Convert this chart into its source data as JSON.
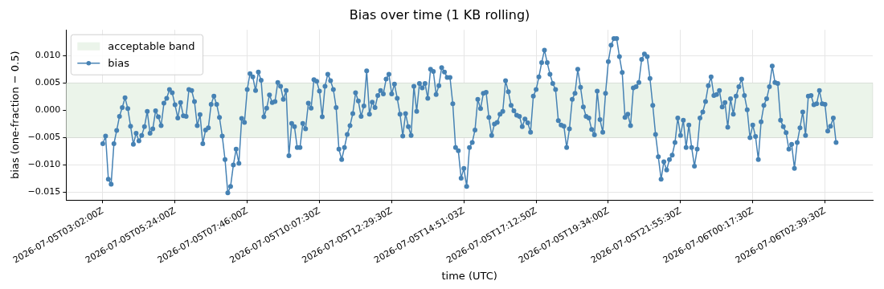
{
  "chart_data": {
    "type": "line",
    "title": "Bias over time (1 KB rolling)",
    "xlabel": "time (UTC)",
    "ylabel": "bias (one-fraction − 0.5)",
    "categories": [
      "2026-07-05T03:02:00Z",
      null,
      null,
      null,
      null,
      null,
      null,
      null,
      null,
      null,
      null,
      null,
      null,
      null,
      null,
      null,
      null,
      null,
      null,
      null,
      null,
      null,
      null,
      null,
      null,
      null,
      "2026-07-05T05:24:00Z",
      null,
      null,
      null,
      null,
      null,
      null,
      null,
      null,
      null,
      null,
      null,
      null,
      null,
      null,
      null,
      null,
      null,
      null,
      null,
      null,
      null,
      null,
      null,
      null,
      null,
      "2026-07-05T07:46:00Z",
      null,
      null,
      null,
      null,
      null,
      null,
      null,
      null,
      null,
      null,
      null,
      null,
      null,
      null,
      null,
      null,
      null,
      null,
      null,
      null,
      null,
      null,
      null,
      null,
      null,
      "2026-07-05T10:07:30Z",
      null,
      null,
      null,
      null,
      null,
      null,
      null,
      null,
      null,
      null,
      null,
      null,
      null,
      null,
      null,
      null,
      null,
      null,
      null,
      null,
      null,
      null,
      null,
      null,
      null,
      "2026-07-05T12:29:30Z",
      null,
      null,
      null,
      null,
      null,
      null,
      null,
      null,
      null,
      null,
      null,
      null,
      null,
      null,
      null,
      null,
      null,
      null,
      null,
      null,
      null,
      null,
      null,
      null,
      null,
      "2026-07-05T14:51:03Z",
      null,
      null,
      null,
      null,
      null,
      null,
      null,
      null,
      null,
      null,
      null,
      null,
      null,
      null,
      null,
      null,
      null,
      null,
      null,
      null,
      null,
      null,
      null,
      null,
      null,
      "2026-07-05T17:12:50Z",
      null,
      null,
      null,
      null,
      null,
      null,
      null,
      null,
      null,
      null,
      null,
      null,
      null,
      null,
      null,
      null,
      null,
      null,
      null,
      null,
      null,
      null,
      null,
      null,
      null,
      "2026-07-05T19:34:00Z",
      null,
      null,
      null,
      null,
      null,
      null,
      null,
      null,
      null,
      null,
      null,
      null,
      null,
      null,
      null,
      null,
      null,
      null,
      null,
      null,
      null,
      null,
      null,
      null,
      null,
      "2026-07-05T21:55:30Z",
      null,
      null,
      null,
      null,
      null,
      null,
      null,
      null,
      null,
      null,
      null,
      null,
      null,
      null,
      null,
      null,
      null,
      null,
      null,
      null,
      null,
      null,
      null,
      null,
      null,
      "2026-07-06T00:17:30Z",
      null,
      null,
      null,
      null,
      null,
      null,
      null,
      null,
      null,
      null,
      null,
      null,
      null,
      null,
      null,
      null,
      null,
      null,
      null,
      null,
      null,
      null,
      null,
      null,
      null,
      "2026-07-06T02:39:30Z",
      null,
      null,
      null,
      null
    ],
    "series": [
      {
        "name": "bias",
        "color": "#4682b4",
        "values": [
          -0.0061,
          -0.0047,
          -0.0126,
          -0.0135,
          -0.0061,
          -0.0037,
          -0.0011,
          0.0005,
          0.0023,
          0.0003,
          -0.0029,
          -0.0062,
          -0.0042,
          -0.0056,
          -0.0046,
          -0.003,
          -0.0002,
          -0.0042,
          -0.0034,
          -0.0001,
          -0.0012,
          -0.0028,
          0.0013,
          0.0022,
          0.0038,
          0.0032,
          0.001,
          -0.0014,
          0.0014,
          -0.001,
          -0.0011,
          0.0038,
          0.0036,
          0.0016,
          -0.0028,
          -0.0008,
          -0.0061,
          -0.0036,
          -0.0032,
          0.0011,
          0.0026,
          0.0011,
          -0.0013,
          -0.0047,
          -0.009,
          -0.0151,
          -0.0139,
          -0.01,
          -0.0071,
          -0.0097,
          -0.0015,
          -0.0022,
          0.0038,
          0.0067,
          0.0061,
          0.0036,
          0.007,
          0.0055,
          -0.0012,
          0.0004,
          0.0028,
          0.0014,
          0.0016,
          0.0051,
          0.0044,
          0.002,
          0.0036,
          -0.0083,
          -0.0024,
          -0.003,
          -0.0068,
          -0.0068,
          -0.0024,
          -0.0034,
          0.0013,
          0.0004,
          0.0056,
          0.0053,
          0.0035,
          -0.0012,
          0.0044,
          0.0066,
          0.0054,
          0.0038,
          0.0005,
          -0.0071,
          -0.009,
          -0.0068,
          -0.0044,
          -0.0028,
          -0.0006,
          0.0032,
          0.0017,
          -0.0011,
          0.0008,
          0.0072,
          -0.0007,
          0.0015,
          0.0005,
          0.0027,
          0.0036,
          0.003,
          0.0057,
          0.0066,
          0.003,
          0.0048,
          0.0022,
          -0.0007,
          -0.0047,
          -0.0006,
          -0.003,
          -0.0046,
          0.0044,
          -0.0002,
          0.0049,
          0.0041,
          0.0049,
          0.0022,
          0.0075,
          0.0071,
          0.0029,
          0.0045,
          0.0078,
          0.007,
          0.006,
          0.006,
          0.0012,
          -0.0068,
          -0.0074,
          -0.0124,
          -0.0106,
          -0.0139,
          -0.0068,
          -0.0059,
          -0.0036,
          0.002,
          0.0003,
          0.0031,
          0.0033,
          -0.0013,
          -0.0046,
          -0.0025,
          -0.0022,
          -0.0007,
          -0.0002,
          0.0054,
          0.0034,
          0.0009,
          -0.0001,
          -0.0009,
          -0.0011,
          -0.003,
          -0.0016,
          -0.0023,
          -0.004,
          0.0026,
          0.0038,
          0.0061,
          0.0087,
          0.011,
          0.0087,
          0.0066,
          0.0049,
          0.0038,
          -0.0019,
          -0.0027,
          -0.0029,
          -0.0068,
          -0.0034,
          0.002,
          0.0031,
          0.0075,
          0.0042,
          0.0006,
          -0.0011,
          -0.0014,
          -0.0035,
          -0.0045,
          0.0035,
          -0.0017,
          -0.004,
          0.0031,
          0.0089,
          0.0119,
          0.0131,
          0.0131,
          0.0098,
          0.0069,
          -0.0013,
          -0.0007,
          -0.0028,
          0.0041,
          0.0043,
          0.0051,
          0.0093,
          0.0103,
          0.0098,
          0.0058,
          0.0009,
          -0.0044,
          -0.0085,
          -0.0126,
          -0.0094,
          -0.0109,
          -0.009,
          -0.0082,
          -0.0059,
          -0.0014,
          -0.0046,
          -0.0018,
          -0.0068,
          -0.0027,
          -0.0068,
          -0.0102,
          -0.0071,
          -0.0014,
          -0.0003,
          0.0016,
          0.0045,
          0.0061,
          0.0027,
          0.0029,
          0.0036,
          0.0006,
          0.0014,
          -0.0031,
          0.0021,
          -0.0007,
          0.0026,
          0.0043,
          0.0057,
          0.0027,
          0.0001,
          -0.005,
          -0.0027,
          -0.0048,
          -0.009,
          -0.0021,
          0.0009,
          0.0021,
          0.0043,
          0.0081,
          0.0051,
          0.0049,
          -0.0018,
          -0.003,
          -0.0041,
          -0.0071,
          -0.0062,
          -0.0106,
          -0.0059,
          -0.0032,
          -0.0003,
          -0.0046,
          0.0026,
          0.0027,
          0.001,
          0.0012,
          0.0036,
          0.0012,
          0.0011,
          -0.0038,
          -0.0029,
          -0.0014,
          -0.0059
        ]
      }
    ],
    "bands": [
      {
        "axis": "y",
        "from": -0.005,
        "to": 0.005,
        "label": "acceptable band",
        "color": "#ebf4ea"
      }
    ],
    "ylim": [
      -0.0164,
      0.0147
    ],
    "yticks": [
      {
        "value": -0.015,
        "label": "−0.015"
      },
      {
        "value": -0.01,
        "label": "−0.010"
      },
      {
        "value": -0.005,
        "label": "−0.005"
      },
      {
        "value": 0,
        "label": "0.000"
      },
      {
        "value": 0.005,
        "label": "0.005"
      },
      {
        "value": 0.01,
        "label": "0.010"
      }
    ],
    "grid": true,
    "legend": "top left",
    "marker": "circle",
    "line_style": "solid"
  }
}
